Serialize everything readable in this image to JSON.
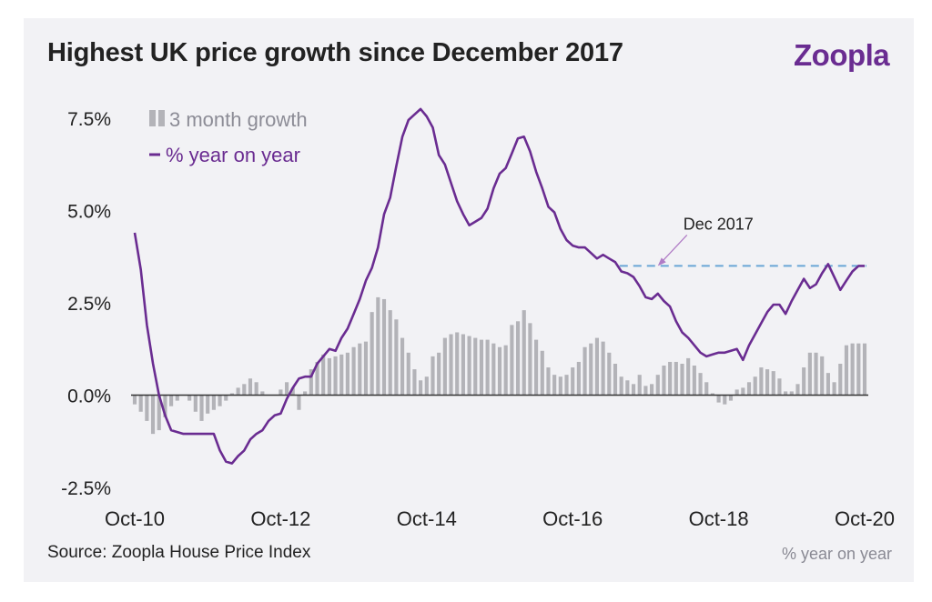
{
  "header": {
    "title": "Highest UK price growth since December 2017",
    "brand": "Zoopla"
  },
  "footer": {
    "source": "Source: Zoopla House Price Index",
    "note": "% year on year"
  },
  "colors": {
    "line": "#6a2c91",
    "bars": "#b3b3b8",
    "reference": "#6aa6d6",
    "axis": "#333333"
  },
  "chart_data": {
    "type": "line",
    "title": "Highest UK price growth since December 2017",
    "xlabel": "",
    "ylabel": "",
    "x_ticks": [
      "Oct-10",
      "Oct-12",
      "Oct-14",
      "Oct-16",
      "Oct-18",
      "Oct-20"
    ],
    "y_ticks": [
      "7.5%",
      "5.0%",
      "2.5%",
      "0.0%",
      "-2.5%"
    ],
    "ylim": [
      -2.5,
      7.5
    ],
    "xlim": [
      "2010-10",
      "2020-10"
    ],
    "grid": false,
    "legend_position": "top-left",
    "series": [
      {
        "name": "3 month growth",
        "type": "bar",
        "x": [
          "2010-10",
          "2010-11",
          "2010-12",
          "2011-01",
          "2011-02",
          "2011-03",
          "2011-04",
          "2011-05",
          "2011-06",
          "2011-07",
          "2011-08",
          "2011-09",
          "2011-10",
          "2011-11",
          "2011-12",
          "2012-01",
          "2012-02",
          "2012-03",
          "2012-04",
          "2012-05",
          "2012-06",
          "2012-07",
          "2012-08",
          "2012-09",
          "2012-10",
          "2012-11",
          "2012-12",
          "2013-01",
          "2013-02",
          "2013-03",
          "2013-04",
          "2013-05",
          "2013-06",
          "2013-07",
          "2013-08",
          "2013-09",
          "2013-10",
          "2013-11",
          "2013-12",
          "2014-01",
          "2014-02",
          "2014-03",
          "2014-04",
          "2014-05",
          "2014-06",
          "2014-07",
          "2014-08",
          "2014-09",
          "2014-10",
          "2014-11",
          "2014-12",
          "2015-01",
          "2015-02",
          "2015-03",
          "2015-04",
          "2015-05",
          "2015-06",
          "2015-07",
          "2015-08",
          "2015-09",
          "2015-10",
          "2015-11",
          "2015-12",
          "2016-01",
          "2016-02",
          "2016-03",
          "2016-04",
          "2016-05",
          "2016-06",
          "2016-07",
          "2016-08",
          "2016-09",
          "2016-10",
          "2016-11",
          "2016-12",
          "2017-01",
          "2017-02",
          "2017-03",
          "2017-04",
          "2017-05",
          "2017-06",
          "2017-07",
          "2017-08",
          "2017-09",
          "2017-10",
          "2017-11",
          "2017-12",
          "2018-01",
          "2018-02",
          "2018-03",
          "2018-04",
          "2018-05",
          "2018-06",
          "2018-07",
          "2018-08",
          "2018-09",
          "2018-10",
          "2018-11",
          "2018-12",
          "2019-01",
          "2019-02",
          "2019-03",
          "2019-04",
          "2019-05",
          "2019-06",
          "2019-07",
          "2019-08",
          "2019-09",
          "2019-10",
          "2019-11",
          "2019-12",
          "2020-01",
          "2020-02",
          "2020-03",
          "2020-04",
          "2020-05",
          "2020-06",
          "2020-07",
          "2020-08",
          "2020-09",
          "2020-10"
        ],
        "values": [
          -0.25,
          -0.45,
          -0.7,
          -1.05,
          -0.95,
          -0.6,
          -0.3,
          -0.15,
          0.0,
          -0.15,
          -0.45,
          -0.7,
          -0.5,
          -0.4,
          -0.3,
          -0.15,
          0.05,
          0.2,
          0.3,
          0.45,
          0.35,
          0.1,
          0.0,
          0.0,
          0.15,
          0.35,
          0.2,
          -0.4,
          0.1,
          0.7,
          0.9,
          1.1,
          1.0,
          1.05,
          1.1,
          1.15,
          1.3,
          1.4,
          1.45,
          2.25,
          2.65,
          2.6,
          2.3,
          2.05,
          1.55,
          1.15,
          0.7,
          0.4,
          0.5,
          1.05,
          1.15,
          1.55,
          1.65,
          1.7,
          1.65,
          1.6,
          1.55,
          1.5,
          1.5,
          1.4,
          1.3,
          1.35,
          1.9,
          2.0,
          2.3,
          1.95,
          1.5,
          1.2,
          0.75,
          0.55,
          0.5,
          0.55,
          0.75,
          0.9,
          1.3,
          1.4,
          1.55,
          1.45,
          1.15,
          0.85,
          0.5,
          0.4,
          0.3,
          0.55,
          0.25,
          0.3,
          0.55,
          0.8,
          0.9,
          0.9,
          0.85,
          1.0,
          0.8,
          0.6,
          0.35,
          0.05,
          -0.2,
          -0.25,
          -0.15,
          0.15,
          0.2,
          0.35,
          0.5,
          0.75,
          0.7,
          0.65,
          0.45,
          0.1,
          0.1,
          0.3,
          0.75,
          1.15,
          1.15,
          1.05,
          0.6,
          0.35,
          0.85,
          1.35,
          1.4,
          1.4,
          1.4
        ]
      },
      {
        "name": "% year on year",
        "type": "line",
        "x": [
          "2010-10",
          "2010-11",
          "2010-12",
          "2011-01",
          "2011-02",
          "2011-03",
          "2011-04",
          "2011-05",
          "2011-06",
          "2011-07",
          "2011-08",
          "2011-09",
          "2011-10",
          "2011-11",
          "2011-12",
          "2012-01",
          "2012-02",
          "2012-03",
          "2012-04",
          "2012-05",
          "2012-06",
          "2012-07",
          "2012-08",
          "2012-09",
          "2012-10",
          "2012-11",
          "2012-12",
          "2013-01",
          "2013-02",
          "2013-03",
          "2013-04",
          "2013-05",
          "2013-06",
          "2013-07",
          "2013-08",
          "2013-09",
          "2013-10",
          "2013-11",
          "2013-12",
          "2014-01",
          "2014-02",
          "2014-03",
          "2014-04",
          "2014-05",
          "2014-06",
          "2014-07",
          "2014-08",
          "2014-09",
          "2014-10",
          "2014-11",
          "2014-12",
          "2015-01",
          "2015-02",
          "2015-03",
          "2015-04",
          "2015-05",
          "2015-06",
          "2015-07",
          "2015-08",
          "2015-09",
          "2015-10",
          "2015-11",
          "2015-12",
          "2016-01",
          "2016-02",
          "2016-03",
          "2016-04",
          "2016-05",
          "2016-06",
          "2016-07",
          "2016-08",
          "2016-09",
          "2016-10",
          "2016-11",
          "2016-12",
          "2017-01",
          "2017-02",
          "2017-03",
          "2017-04",
          "2017-05",
          "2017-06",
          "2017-07",
          "2017-08",
          "2017-09",
          "2017-10",
          "2017-11",
          "2017-12",
          "2018-01",
          "2018-02",
          "2018-03",
          "2018-04",
          "2018-05",
          "2018-06",
          "2018-07",
          "2018-08",
          "2018-09",
          "2018-10",
          "2018-11",
          "2018-12",
          "2019-01",
          "2019-02",
          "2019-03",
          "2019-04",
          "2019-05",
          "2019-06",
          "2019-07",
          "2019-08",
          "2019-09",
          "2019-10",
          "2019-11",
          "2019-12",
          "2020-01",
          "2020-02",
          "2020-03",
          "2020-04",
          "2020-05",
          "2020-06",
          "2020-07",
          "2020-08",
          "2020-09",
          "2020-10"
        ],
        "values": [
          4.4,
          3.4,
          1.9,
          0.85,
          0.0,
          -0.55,
          -0.95,
          -1.0,
          -1.05,
          -1.05,
          -1.05,
          -1.05,
          -1.05,
          -1.05,
          -1.5,
          -1.8,
          -1.85,
          -1.65,
          -1.5,
          -1.2,
          -1.05,
          -0.95,
          -0.7,
          -0.55,
          -0.5,
          -0.1,
          0.2,
          0.45,
          0.5,
          0.5,
          0.85,
          1.05,
          1.25,
          1.2,
          1.55,
          1.8,
          2.2,
          2.6,
          3.1,
          3.45,
          4.0,
          4.9,
          5.35,
          6.2,
          7.0,
          7.45,
          7.6,
          7.75,
          7.55,
          7.25,
          6.5,
          6.25,
          5.75,
          5.25,
          4.9,
          4.6,
          4.7,
          4.8,
          5.05,
          5.6,
          6.0,
          6.15,
          6.55,
          6.95,
          7.0,
          6.6,
          6.05,
          5.6,
          5.1,
          4.95,
          4.5,
          4.2,
          4.05,
          4.0,
          4.0,
          3.85,
          3.7,
          3.8,
          3.7,
          3.6,
          3.35,
          3.3,
          3.2,
          2.95,
          2.65,
          2.6,
          2.75,
          2.55,
          2.4,
          2.0,
          1.7,
          1.55,
          1.35,
          1.15,
          1.05,
          1.1,
          1.15,
          1.15,
          1.2,
          1.25,
          0.95,
          1.35,
          1.65,
          1.95,
          2.25,
          2.45,
          2.45,
          2.2,
          2.55,
          2.85,
          3.15,
          2.9,
          3.0,
          3.3,
          3.55,
          3.2,
          2.85,
          3.1,
          3.35,
          3.5,
          3.5
        ]
      }
    ],
    "annotations": [
      {
        "text": "Dec 2017",
        "x": "2017-12",
        "y": 3.5
      }
    ],
    "reference_line": {
      "y": 3.5,
      "from": "2017-12",
      "to": "2020-10",
      "style": "dashed"
    }
  }
}
